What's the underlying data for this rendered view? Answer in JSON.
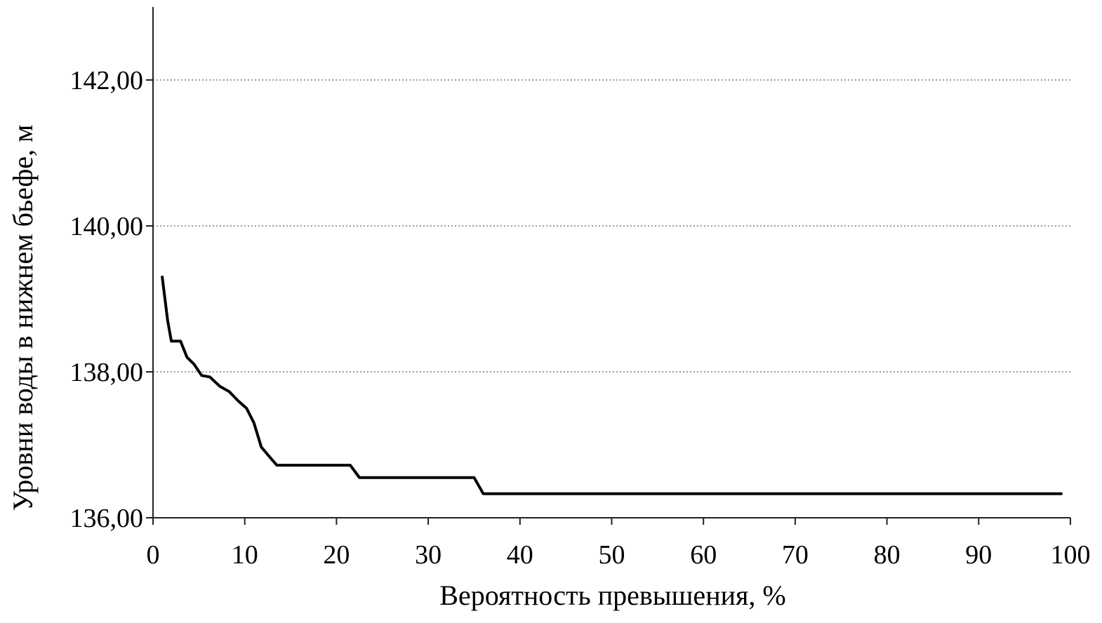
{
  "chart_data": {
    "type": "line",
    "title": "",
    "xlabel": "Вероятность превышения, %",
    "ylabel": "Уровни воды в нижнем бьефе, м",
    "xlim": [
      0,
      100
    ],
    "ylim": [
      136,
      143
    ],
    "x_ticks": [
      0,
      10,
      20,
      30,
      40,
      50,
      60,
      70,
      80,
      90,
      100
    ],
    "x_tick_labels": [
      "0",
      "10",
      "20",
      "30",
      "40",
      "50",
      "60",
      "70",
      "80",
      "90",
      "100"
    ],
    "y_ticks": [
      136,
      138,
      140,
      142
    ],
    "y_tick_labels": [
      "136,00",
      "138,00",
      "140,00",
      "142,00"
    ],
    "grid": true,
    "legend": "none",
    "line_color": "#000000",
    "series": [
      {
        "points": [
          [
            1.0,
            139.3
          ],
          [
            1.6,
            138.7
          ],
          [
            2.0,
            138.42
          ],
          [
            3.0,
            138.42
          ],
          [
            3.7,
            138.2
          ],
          [
            4.5,
            138.1
          ],
          [
            5.3,
            137.95
          ],
          [
            6.2,
            137.93
          ],
          [
            7.3,
            137.8
          ],
          [
            8.3,
            137.73
          ],
          [
            9.3,
            137.6
          ],
          [
            10.2,
            137.5
          ],
          [
            11.0,
            137.3
          ],
          [
            11.8,
            136.97
          ],
          [
            12.6,
            136.85
          ],
          [
            13.5,
            136.72
          ],
          [
            21.5,
            136.72
          ],
          [
            22.5,
            136.55
          ],
          [
            35.0,
            136.55
          ],
          [
            36.0,
            136.33
          ],
          [
            99.0,
            136.33
          ]
        ]
      }
    ]
  }
}
